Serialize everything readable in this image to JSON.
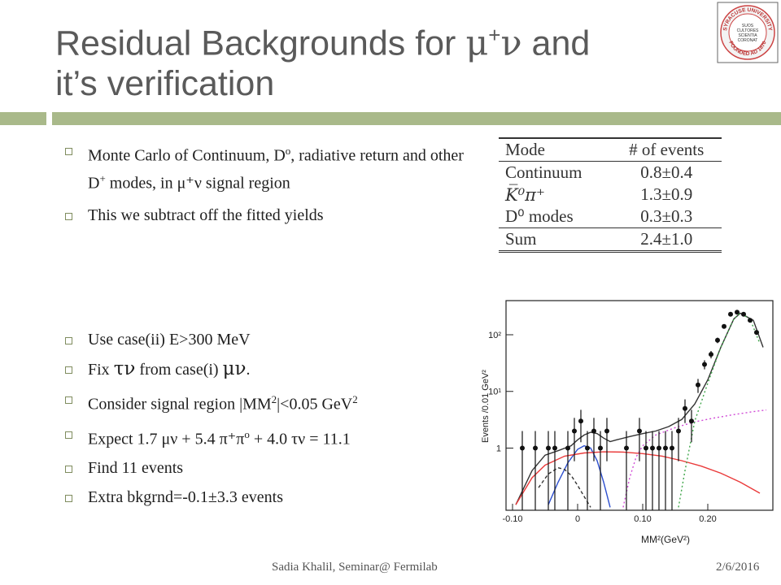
{
  "slide": {
    "title_line1_pre": "Residual Backgrounds for ",
    "title_mu": "μ",
    "title_plus": "+",
    "title_nu": "ν",
    "title_line1_post": " and",
    "title_line2": "it’s verification"
  },
  "logo": {
    "top_text": "SYRACUSE UNIVERSITY",
    "bottom_text": "FOUNDED AD 1870",
    "center_lines": [
      "SUOS",
      "CULTORES",
      "SCIENTIA",
      "CORONAT"
    ]
  },
  "bullets_top": [
    {
      "pre": "Monte Carlo of Continuum, D",
      "sup1": "o",
      "mid": ", radiative return and other D",
      "sup2": "+",
      "post": " modes, in μ⁺ν signal region"
    },
    {
      "text": "This we subtract off the fitted yields"
    }
  ],
  "bullets_bottom": [
    {
      "text": "Use case(ii) E>300 MeV"
    },
    {
      "pre": "Fix ",
      "greek": "τν",
      "mid": " from case(i) ",
      "greek2": "μν",
      "post": "."
    },
    {
      "pre": "Consider signal region |MM",
      "sup": "2",
      "mid": "|<0.05 GeV",
      "sup2": "2"
    },
    {
      "pre": "Expect 1.7 μν + 5.4 π⁺π",
      "sup": "o",
      "post": " + 4.0 τν = 11.1"
    },
    {
      "text": "Find 11 events"
    },
    {
      "text": "Extra bkgrnd=-0.1±3.3 events"
    }
  ],
  "table": {
    "headers": [
      "Mode",
      "# of events"
    ],
    "rows": [
      [
        "Continuum",
        "0.8±0.4"
      ],
      [
        "K̅⁰π⁺",
        "1.3±0.9"
      ],
      [
        "D⁰ modes",
        "0.3±0.3"
      ]
    ],
    "sum": [
      "Sum",
      "2.4±1.0"
    ]
  },
  "chart_data": {
    "type": "scatter",
    "xlabel": "MM²(GeV²)",
    "ylabel": "Events /0.01 GeV²",
    "xlim": [
      -0.11,
      0.3
    ],
    "ylim": [
      0.08,
      400
    ],
    "y_log": true,
    "x_ticks": [
      "-0.10",
      "0",
      "0.10",
      "0.20"
    ],
    "y_ticks": [
      "1",
      "10¹",
      "10²"
    ],
    "points": [
      {
        "x": -0.085,
        "y": 1
      },
      {
        "x": -0.065,
        "y": 1
      },
      {
        "x": -0.045,
        "y": 1
      },
      {
        "x": -0.035,
        "y": 1
      },
      {
        "x": -0.015,
        "y": 1
      },
      {
        "x": -0.005,
        "y": 2
      },
      {
        "x": 0.005,
        "y": 3
      },
      {
        "x": 0.015,
        "y": 1
      },
      {
        "x": 0.025,
        "y": 2
      },
      {
        "x": 0.035,
        "y": 1
      },
      {
        "x": 0.045,
        "y": 2
      },
      {
        "x": 0.075,
        "y": 1
      },
      {
        "x": 0.095,
        "y": 2
      },
      {
        "x": 0.105,
        "y": 1
      },
      {
        "x": 0.115,
        "y": 1
      },
      {
        "x": 0.125,
        "y": 1
      },
      {
        "x": 0.135,
        "y": 1
      },
      {
        "x": 0.145,
        "y": 1
      },
      {
        "x": 0.155,
        "y": 2
      },
      {
        "x": 0.165,
        "y": 5
      },
      {
        "x": 0.175,
        "y": 3
      },
      {
        "x": 0.185,
        "y": 13
      },
      {
        "x": 0.195,
        "y": 30
      },
      {
        "x": 0.205,
        "y": 45
      },
      {
        "x": 0.215,
        "y": 80
      },
      {
        "x": 0.225,
        "y": 140
      },
      {
        "x": 0.235,
        "y": 230
      },
      {
        "x": 0.245,
        "y": 250
      },
      {
        "x": 0.255,
        "y": 230
      },
      {
        "x": 0.265,
        "y": 180
      },
      {
        "x": 0.275,
        "y": 110
      }
    ],
    "series": [
      {
        "color": "#333333",
        "style": "solid",
        "x": [
          -0.095,
          -0.07,
          -0.05,
          -0.03,
          -0.01,
          0.0,
          0.01,
          0.02,
          0.03,
          0.04,
          0.05,
          0.06,
          0.08,
          0.1,
          0.12,
          0.14,
          0.16,
          0.18,
          0.2,
          0.22,
          0.24,
          0.25,
          0.27,
          0.285
        ],
        "y": [
          0.1,
          0.4,
          0.75,
          0.9,
          1.1,
          1.4,
          1.7,
          1.9,
          1.8,
          1.5,
          1.3,
          1.4,
          1.6,
          1.8,
          2.0,
          2.4,
          3.2,
          6,
          16,
          60,
          190,
          240,
          180,
          60
        ]
      },
      {
        "color": "#2d4fcf",
        "style": "solid",
        "x": [
          -0.045,
          -0.03,
          -0.015,
          0.0,
          0.01,
          0.02,
          0.03,
          0.04,
          0.05
        ],
        "y": [
          0.1,
          0.25,
          0.55,
          0.95,
          1.1,
          1.0,
          0.6,
          0.25,
          0.09
        ]
      },
      {
        "color": "#ea3a3a",
        "style": "solid",
        "x": [
          -0.095,
          -0.07,
          -0.05,
          -0.02,
          0.01,
          0.04,
          0.07,
          0.1,
          0.13,
          0.16,
          0.19,
          0.22,
          0.25,
          0.28
        ],
        "y": [
          0.1,
          0.3,
          0.5,
          0.72,
          0.82,
          0.86,
          0.85,
          0.8,
          0.72,
          0.6,
          0.48,
          0.36,
          0.25,
          0.16
        ]
      },
      {
        "color": "#d04ad6",
        "style": "dotted",
        "x": [
          0.07,
          0.08,
          0.09,
          0.1,
          0.12,
          0.15,
          0.18,
          0.21,
          0.24,
          0.27,
          0.29
        ],
        "y": [
          0.09,
          0.3,
          0.7,
          1.1,
          1.7,
          2.3,
          2.9,
          3.4,
          3.9,
          4.4,
          4.7
        ]
      },
      {
        "color": "#3fa64a",
        "style": "dotted",
        "x": [
          0.155,
          0.165,
          0.18,
          0.2,
          0.22,
          0.24,
          0.25,
          0.265,
          0.28
        ],
        "y": [
          0.09,
          0.4,
          3,
          14,
          60,
          190,
          240,
          190,
          70
        ]
      },
      {
        "color": "#333333",
        "style": "dashed",
        "x": [
          -0.06,
          -0.045,
          -0.03,
          -0.02,
          -0.01,
          0.0,
          0.01,
          0.02
        ],
        "y": [
          0.2,
          0.35,
          0.45,
          0.42,
          0.33,
          0.22,
          0.14,
          0.09
        ]
      }
    ]
  },
  "footer": {
    "left": "Sadia Khalil, Seminar@ Fermilab",
    "right": "2/6/2016"
  }
}
